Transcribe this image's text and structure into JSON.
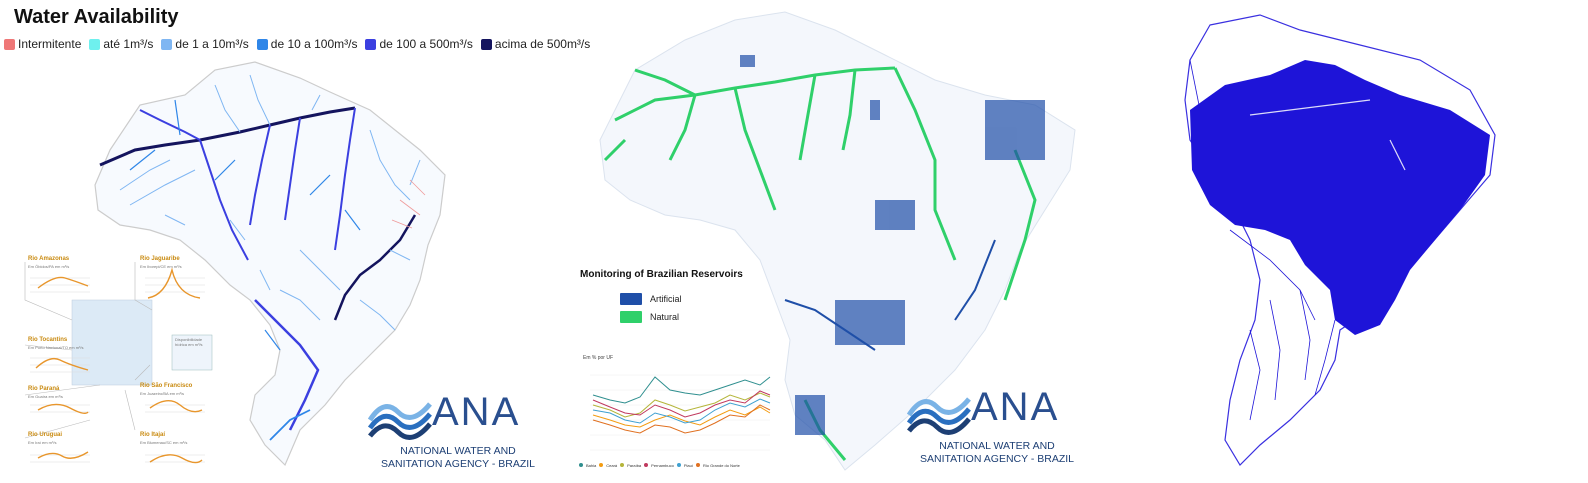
{
  "panel1": {
    "title": "Water Availability",
    "legend": [
      {
        "label": "Intermitente",
        "color": "#ef7777"
      },
      {
        "label": "até 1m³/s",
        "color": "#6ef0ee"
      },
      {
        "label": "de 1 a 10m³/s",
        "color": "#7fb6f2"
      },
      {
        "label": "de 10 a 100m³/s",
        "color": "#2f86e8"
      },
      {
        "label": "de 100 a 500m³/s",
        "color": "#3b3fe0"
      },
      {
        "label": "acima de 500m³/s",
        "color": "#14145e"
      }
    ],
    "insets": [
      {
        "name": "Rio Amazonas",
        "sub": "Em Óbidos/PA  em m³/s"
      },
      {
        "name": "Rio Jaguaribe",
        "sub": "Em Iborepi/CE  em m³/s"
      },
      {
        "name": "Rio Tocantins",
        "sub": "Em Porto Nacional/TO  em m³/s"
      },
      {
        "name": "Rio Paraná",
        "sub": "Em Guaíra  em m³/s"
      },
      {
        "name": "Rio São Francisco",
        "sub": "Em Juazeiro/BA  em m³/s"
      },
      {
        "name": "Rio Uruguai",
        "sub": "Em Iraí  em m³/s"
      },
      {
        "name": "Rio Itajaí",
        "sub": "Em Blumenau/SC  em m³/s"
      }
    ],
    "inset_box": "Disponibilidade hídrica  em m³/s",
    "logo": {
      "word": "ANA",
      "line1": "NATIONAL WATER AND",
      "line2": "SANITATION AGENCY - BRAZIL"
    }
  },
  "panel2": {
    "reservoir_title": "Monitoring of Brazilian Reservoirs",
    "legend": [
      {
        "label": "Artificial",
        "color": "#1f4fa8"
      },
      {
        "label": "Natural",
        "color": "#2fd06a"
      }
    ],
    "mini_chart": {
      "caption": "Em % por UF",
      "series_colors": [
        "#2f8f8f",
        "#f39c12",
        "#b5b53a",
        "#c0395e",
        "#3fa0d0",
        "#e07020"
      ],
      "series_names": [
        "Bahia",
        "Ceará",
        "Paraíba",
        "Pernambuco",
        "Piauí",
        "Rio Grande do Norte"
      ]
    },
    "logo": {
      "word": "ANA",
      "line1": "NATIONAL WATER AND",
      "line2": "SANITATION AGENCY - BRAZIL"
    }
  },
  "panel3": {
    "fill_color": "#1e14d8"
  }
}
